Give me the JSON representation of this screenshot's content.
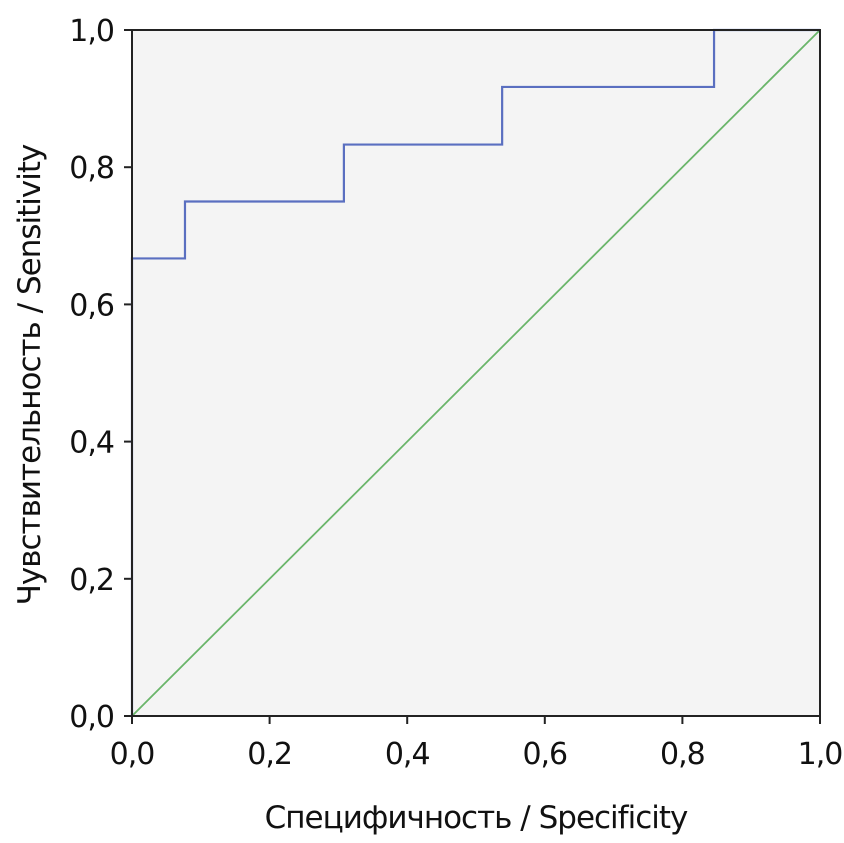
{
  "chart_data": {
    "type": "line",
    "title": "",
    "xlabel": "Специфичность / Specificity",
    "ylabel": "Чувствительность / Sensitivity",
    "xlim": [
      0,
      1
    ],
    "ylim": [
      0,
      1
    ],
    "x_ticks": [
      "0,0",
      "0,2",
      "0,4",
      "0,6",
      "0,8",
      "1,0"
    ],
    "y_ticks": [
      "0,0",
      "0,2",
      "0,4",
      "0,6",
      "0,8",
      "1,0"
    ],
    "grid": false,
    "legend": "none",
    "plot_background": "#f4f4f4",
    "series": [
      {
        "color": "#5a6fc0",
        "step": true,
        "points": [
          [
            0.0,
            0.0
          ],
          [
            0.0,
            0.667
          ],
          [
            0.077,
            0.667
          ],
          [
            0.077,
            0.75
          ],
          [
            0.308,
            0.75
          ],
          [
            0.308,
            0.833
          ],
          [
            0.538,
            0.833
          ],
          [
            0.538,
            0.917
          ],
          [
            0.846,
            0.917
          ],
          [
            0.846,
            1.0
          ],
          [
            1.0,
            1.0
          ]
        ]
      },
      {
        "color": "#6ab56a",
        "step": false,
        "points": [
          [
            0.0,
            0.0
          ],
          [
            1.0,
            1.0
          ]
        ]
      }
    ]
  }
}
